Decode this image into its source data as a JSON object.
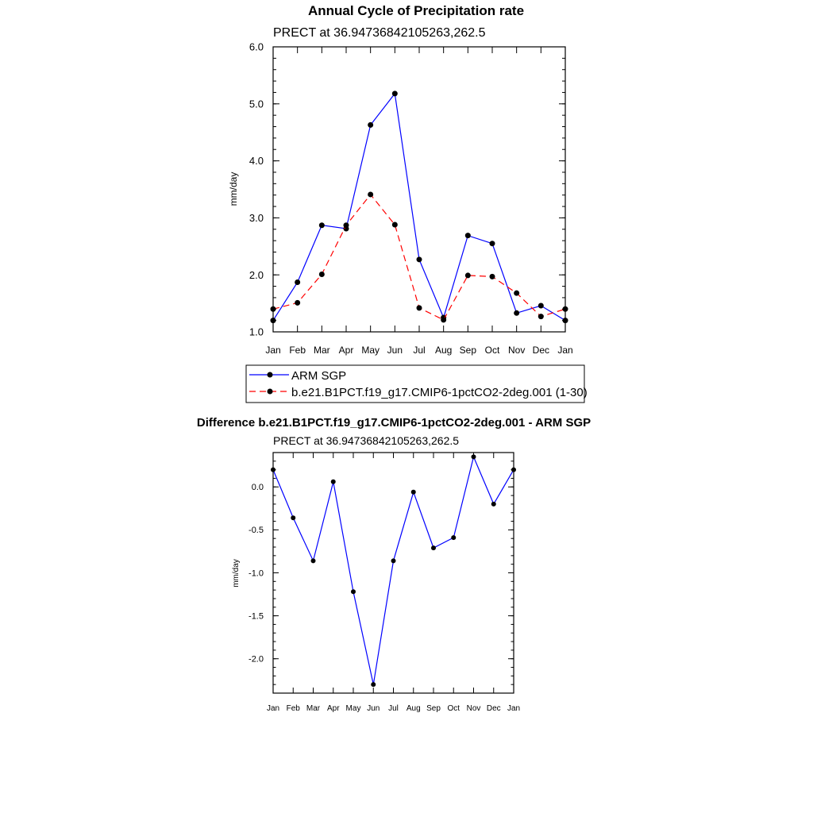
{
  "chart_data": [
    {
      "type": "line",
      "title": "Annual Cycle of Precipitation rate",
      "subtitle": "PRECT at 36.94736842105263,262.5",
      "xlabel": "",
      "ylabel": "mm/day",
      "categories": [
        "Jan",
        "Feb",
        "Mar",
        "Apr",
        "May",
        "Jun",
        "Jul",
        "Aug",
        "Sep",
        "Oct",
        "Nov",
        "Dec",
        "Jan"
      ],
      "ylim": [
        1.0,
        6.0
      ],
      "yticks": [
        "1.0",
        "2.0",
        "3.0",
        "4.0",
        "5.0",
        "6.0"
      ],
      "legend_position": "bottom",
      "series": [
        {
          "name": "ARM SGP",
          "style": "solid",
          "color": "#0000ff",
          "values": [
            1.2,
            1.87,
            2.87,
            2.81,
            4.63,
            5.18,
            2.27,
            1.25,
            2.69,
            2.55,
            1.33,
            1.46,
            1.2
          ]
        },
        {
          "name": "b.e21.B1PCT.f19_g17.CMIP6-1pctCO2-2deg.001 (1-30)",
          "style": "dashed",
          "color": "#ff0000",
          "values": [
            1.4,
            1.51,
            2.01,
            2.87,
            3.41,
            2.88,
            1.42,
            1.21,
            1.99,
            1.97,
            1.68,
            1.27,
            1.4
          ]
        }
      ]
    },
    {
      "type": "line",
      "title": "Difference b.e21.B1PCT.f19_g17.CMIP6-1pctCO2-2deg.001 - ARM SGP",
      "subtitle": "PRECT at 36.94736842105263,262.5",
      "xlabel": "",
      "ylabel": "mm/day",
      "categories": [
        "Jan",
        "Feb",
        "Mar",
        "Apr",
        "May",
        "Jun",
        "Jul",
        "Aug",
        "Sep",
        "Oct",
        "Nov",
        "Dec",
        "Jan"
      ],
      "ylim": [
        -2.4,
        0.4
      ],
      "yticks": [
        "-2.0",
        "-1.5",
        "-1.0",
        "-0.5",
        "0.0"
      ],
      "series": [
        {
          "name": "Difference",
          "style": "solid",
          "color": "#0000ff",
          "values": [
            0.2,
            -0.36,
            -0.86,
            0.06,
            -1.22,
            -2.3,
            -0.86,
            -0.06,
            -0.71,
            -0.59,
            0.35,
            -0.2,
            0.2
          ]
        }
      ]
    }
  ]
}
